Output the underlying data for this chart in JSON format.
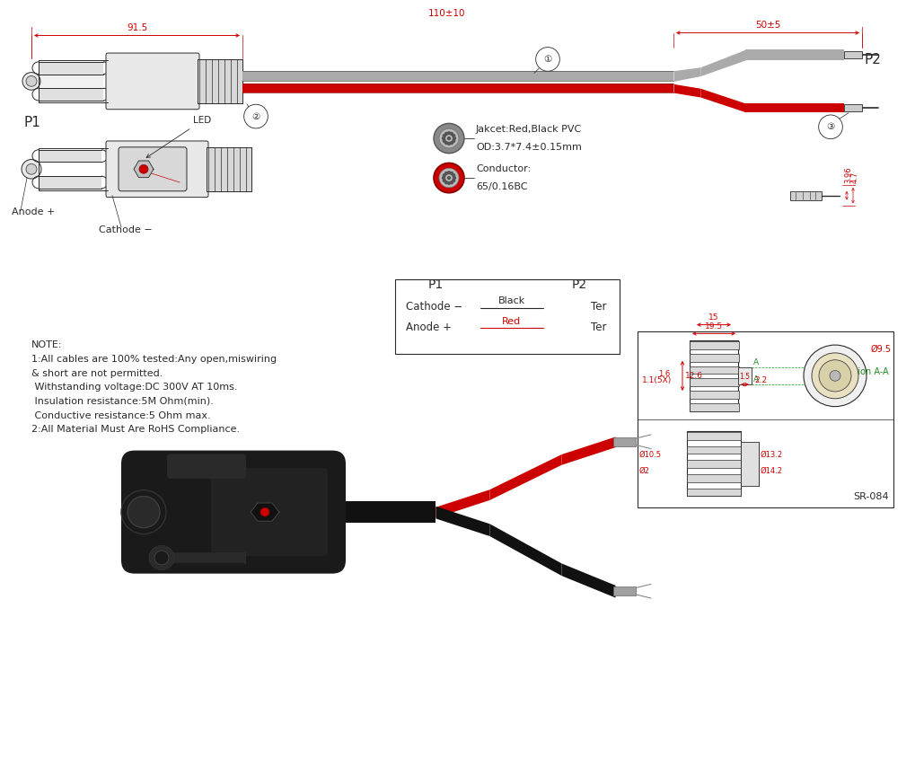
{
  "bg_color": "#ffffff",
  "line_color": "#2a2a2a",
  "red_color": "#cc0000",
  "gray_color": "#888888",
  "dim_color": "#cc0000",
  "green_color": "#228B22",
  "note_lines": [
    "NOTE:",
    "1:All cables are 100% tested:Any open,miswiring",
    "& short are not permitted.",
    " Withstanding voltage:DC 300V AT 10ms.",
    " Insulation resistance:5M Ohm(min).",
    " Conductive resistance:5 Ohm max.",
    "2:All Material Must Are RoHS Compliance."
  ],
  "conductor_text1": "Conductor:",
  "conductor_text2": "65/0.16BC",
  "jacket_text1": "Jakcet:Red,Black PVC",
  "jacket_text2": "OD:3.7*7.4±0.15mm",
  "table_headers": [
    "P1",
    "P2"
  ],
  "table_row1": [
    "Cathode −",
    "Black",
    "Ter"
  ],
  "table_row2": [
    "Anode +",
    "Red",
    "Ter"
  ],
  "dim_91": "91.5",
  "dim_110": "110±10",
  "dim_50": "50±5",
  "label_p1": "P1",
  "label_p2": "P2",
  "label_led": "LED",
  "label_anode": "Anode +",
  "label_cathode": "Cathode −",
  "sr_label": "SR-084",
  "section_label": "section A-A",
  "dim_19_5": "19.5",
  "dim_15": "15",
  "dim_1_5": "1.5",
  "dim_12_6": "12.6",
  "dim_1_6": "1.6",
  "dim_5x": "1.1(5X)",
  "dim_2_2": "2.2",
  "dim_phi_9_5": "Ø9.5",
  "dim_phi_10_5": "Ø10.5",
  "dim_phi_2": "Ø2",
  "dim_13_2": "Ø13.2",
  "dim_14_2": "Ø14.2",
  "dim_3_96": "3.96",
  "dim_4_7": "4.7"
}
